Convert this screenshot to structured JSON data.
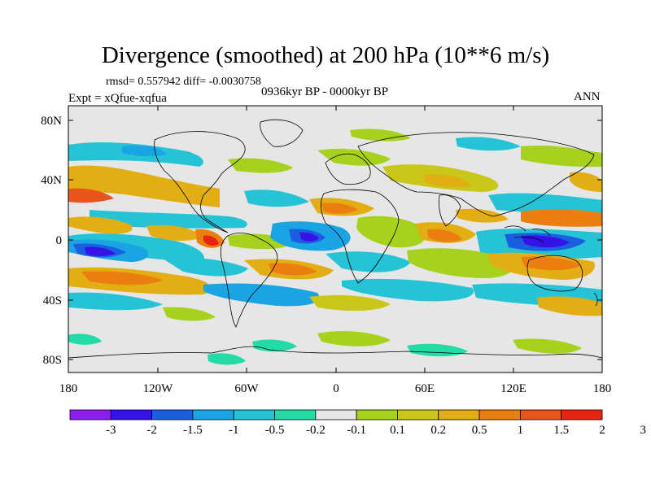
{
  "title": "Divergence (smoothed) at 200 hPa (10**6 m/s)",
  "stats": "rmsd= 0.557942 diff= -0.0030758",
  "experiment": "Expt = xQfue-xqfua",
  "period": "0936kyr BP - 0000kyr BP",
  "season": "ANN",
  "axes": {
    "lon_ticks": [
      "180",
      "120W",
      "60W",
      "0",
      "60E",
      "120E",
      "180"
    ],
    "lat_ticks": [
      "80N",
      "40N",
      "0",
      "40S",
      "80S"
    ]
  },
  "colorbar": {
    "colors": [
      "#8a1ff0",
      "#3512e6",
      "#1a5fe0",
      "#1aa4e3",
      "#26c3d6",
      "#22dba6",
      "#e6e6e6",
      "#a6d21e",
      "#c9c81a",
      "#e3ad14",
      "#ea7f10",
      "#e9541a",
      "#e52412"
    ],
    "labels": [
      "-3",
      "-2",
      "-1.5",
      "-1",
      "-0.5",
      "-0.2",
      "-0.1",
      "0.1",
      "0.2",
      "0.5",
      "1",
      "1.5",
      "2",
      "3"
    ]
  }
}
